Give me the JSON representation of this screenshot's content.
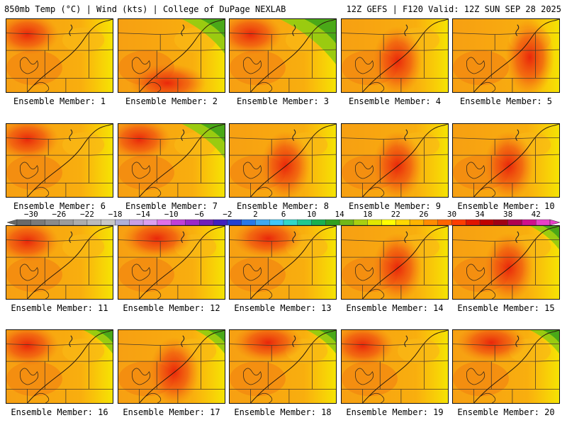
{
  "header": {
    "left": "850mb Temp (°C) | Wind (kts) | College of DuPage NEXLAB",
    "right": "12Z GEFS | F120 Valid: 12Z SUN SEP 28 2025"
  },
  "panels": [
    {
      "label": "Ensemble Member: 1",
      "hot": "NW",
      "green": 0
    },
    {
      "label": "Ensemble Member: 2",
      "hot": "S",
      "green": 2
    },
    {
      "label": "Ensemble Member: 3",
      "hot": "NW",
      "green": 3
    },
    {
      "label": "Ensemble Member: 4",
      "hot": "C",
      "green": 0
    },
    {
      "label": "Ensemble Member: 5",
      "hot": "E",
      "green": 0
    },
    {
      "label": "Ensemble Member: 6",
      "hot": "NW",
      "green": 0
    },
    {
      "label": "Ensemble Member: 7",
      "hot": "NW",
      "green": 2
    },
    {
      "label": "Ensemble Member: 8",
      "hot": "C",
      "green": 0
    },
    {
      "label": "Ensemble Member: 9",
      "hot": "C",
      "green": 0
    },
    {
      "label": "Ensemble Member: 10",
      "hot": "C",
      "green": 0
    },
    {
      "label": "Ensemble Member: 11",
      "hot": "NW",
      "green": 0
    },
    {
      "label": "Ensemble Member: 12",
      "hot": "N",
      "green": 0
    },
    {
      "label": "Ensemble Member: 13",
      "hot": "N",
      "green": 0
    },
    {
      "label": "Ensemble Member: 14",
      "hot": "C",
      "green": 0
    },
    {
      "label": "Ensemble Member: 15",
      "hot": "C",
      "green": 1
    },
    {
      "label": "Ensemble Member: 16",
      "hot": "NW",
      "green": 1
    },
    {
      "label": "Ensemble Member: 17",
      "hot": "C",
      "green": 1
    },
    {
      "label": "Ensemble Member: 18",
      "hot": "N",
      "green": 1
    },
    {
      "label": "Ensemble Member: 19",
      "hot": "NW",
      "green": 0
    },
    {
      "label": "Ensemble Member: 20",
      "hot": "N",
      "green": 1
    }
  ],
  "colorbar": {
    "ticks": [
      "−30",
      "−26",
      "−22",
      "−18",
      "−14",
      "−10",
      "−6",
      "−2",
      "2",
      "6",
      "10",
      "14",
      "18",
      "22",
      "26",
      "30",
      "34",
      "38",
      "42"
    ],
    "min": -32,
    "max": 44,
    "step": 2,
    "colors": [
      "#696969",
      "#7a7a7a",
      "#8b8b8b",
      "#9c9c9c",
      "#adadad",
      "#bbbbbb",
      "#c8c8c8",
      "#b0b0d8",
      "#c8a0e6",
      "#dca0f0",
      "#e070e8",
      "#c040d8",
      "#9a28c8",
      "#7020b8",
      "#4020c0",
      "#2040d0",
      "#2878e8",
      "#40a8f0",
      "#40c8f8",
      "#30d8c8",
      "#20c890",
      "#18b050",
      "#30a020",
      "#70b818",
      "#a8d010",
      "#e0e800",
      "#ffff00",
      "#ffd800",
      "#ffb400",
      "#ff8c00",
      "#ff6400",
      "#ff3c00",
      "#e01400",
      "#c00000",
      "#a00014",
      "#b00050",
      "#d0108c",
      "#e840c8"
    ]
  }
}
